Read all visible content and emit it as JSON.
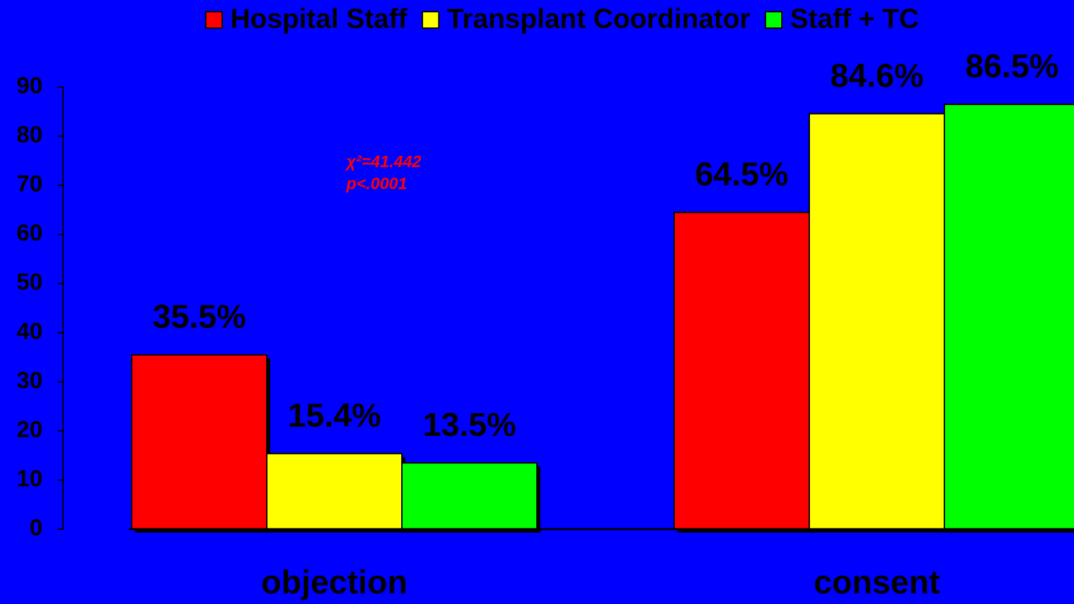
{
  "chart_data": {
    "type": "bar",
    "categories": [
      "objection",
      "consent"
    ],
    "series": [
      {
        "name": "Hospital Staff",
        "color": "#ff0000",
        "values": [
          35.5,
          64.5
        ],
        "value_labels": [
          "35.5%",
          "64.5%"
        ]
      },
      {
        "name": "Transplant Coordinator",
        "color": "#ffff00",
        "values": [
          15.4,
          84.6
        ],
        "value_labels": [
          "15.4%",
          "84.6%"
        ]
      },
      {
        "name": "Staff + TC",
        "color": "#00ff00",
        "values": [
          13.5,
          86.5
        ],
        "value_labels": [
          "13.5%",
          "86.5%"
        ]
      }
    ],
    "ylim": [
      0,
      90
    ],
    "yticks": [
      0,
      10,
      20,
      30,
      40,
      50,
      60,
      70,
      80,
      90
    ],
    "annotation": [
      "χ²=41.442",
      "p<.0001"
    ],
    "legend": "top",
    "background": "#0000ff"
  }
}
